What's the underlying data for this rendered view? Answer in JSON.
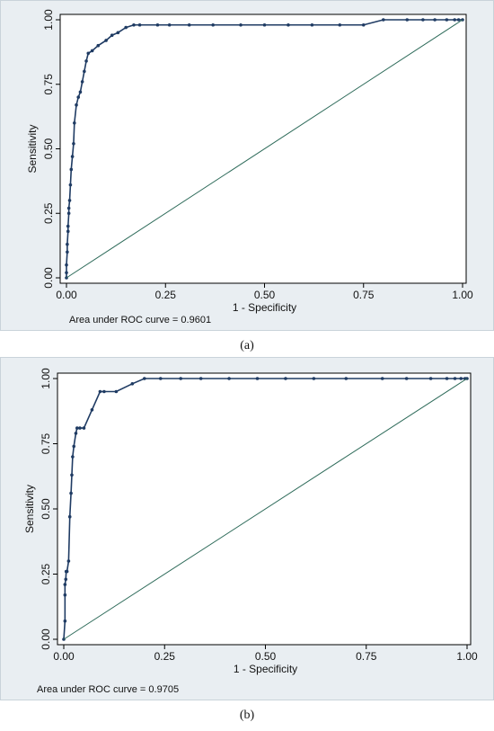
{
  "chart_data": [
    {
      "type": "line",
      "panel_label": "(a)",
      "xlabel": "1 - Specificity",
      "ylabel": "Sensitivity",
      "xlim": [
        0,
        1
      ],
      "ylim": [
        0,
        1
      ],
      "xticks": [
        "0.00",
        "0.25",
        "0.50",
        "0.75",
        "1.00"
      ],
      "yticks": [
        "0.00",
        "0.25",
        "0.50",
        "0.75",
        "1.00"
      ],
      "annotation": "Area under ROC curve = 0.9601",
      "grid": false,
      "series": [
        {
          "kind": "roc",
          "x": [
            0,
            0,
            0,
            0.002,
            0.002,
            0.004,
            0.004,
            0.006,
            0.006,
            0.008,
            0.01,
            0.012,
            0.015,
            0.018,
            0.02,
            0.025,
            0.03,
            0.035,
            0.04,
            0.045,
            0.05,
            0.055,
            0.065,
            0.08,
            0.1,
            0.115,
            0.13,
            0.15,
            0.17,
            0.185,
            0.23,
            0.26,
            0.31,
            0.37,
            0.44,
            0.5,
            0.56,
            0.62,
            0.69,
            0.75,
            0.8,
            0.86,
            0.9,
            0.93,
            0.96,
            0.98,
            0.99,
            1.0
          ],
          "y": [
            0,
            0.02,
            0.05,
            0.1,
            0.13,
            0.18,
            0.2,
            0.25,
            0.27,
            0.3,
            0.36,
            0.42,
            0.47,
            0.52,
            0.6,
            0.67,
            0.7,
            0.72,
            0.76,
            0.8,
            0.84,
            0.87,
            0.88,
            0.9,
            0.92,
            0.94,
            0.95,
            0.97,
            0.98,
            0.98,
            0.98,
            0.98,
            0.98,
            0.98,
            0.98,
            0.98,
            0.98,
            0.98,
            0.98,
            0.98,
            1.0,
            1.0,
            1.0,
            1.0,
            1.0,
            1.0,
            1.0,
            1.0
          ]
        },
        {
          "kind": "reference",
          "x": [
            0,
            1
          ],
          "y": [
            0,
            1
          ]
        }
      ]
    },
    {
      "type": "line",
      "panel_label": "(b)",
      "xlabel": "1 - Specificity",
      "ylabel": "Sensitivity",
      "xlim": [
        0,
        1
      ],
      "ylim": [
        0,
        1
      ],
      "xticks": [
        "0.00",
        "0.25",
        "0.50",
        "0.75",
        "1.00"
      ],
      "yticks": [
        "0.00",
        "0.25",
        "0.50",
        "0.75",
        "1.00"
      ],
      "annotation": "Area under ROC curve = 0.9705",
      "grid": false,
      "series": [
        {
          "kind": "roc",
          "x": [
            0,
            0.003,
            0.003,
            0.003,
            0.005,
            0.006,
            0.008,
            0.012,
            0.015,
            0.018,
            0.02,
            0.022,
            0.025,
            0.03,
            0.033,
            0.04,
            0.05,
            0.07,
            0.09,
            0.1,
            0.13,
            0.17,
            0.2,
            0.24,
            0.29,
            0.34,
            0.41,
            0.48,
            0.55,
            0.62,
            0.7,
            0.79,
            0.85,
            0.91,
            0.95,
            0.97,
            0.985,
            0.995,
            1.0
          ],
          "y": [
            0,
            0.07,
            0.17,
            0.21,
            0.23,
            0.26,
            0.26,
            0.3,
            0.47,
            0.56,
            0.63,
            0.7,
            0.74,
            0.79,
            0.81,
            0.81,
            0.81,
            0.88,
            0.95,
            0.95,
            0.95,
            0.98,
            1.0,
            1.0,
            1.0,
            1.0,
            1.0,
            1.0,
            1.0,
            1.0,
            1.0,
            1.0,
            1.0,
            1.0,
            1.0,
            1.0,
            1.0,
            1.0,
            1.0
          ]
        },
        {
          "kind": "reference",
          "x": [
            0,
            1
          ],
          "y": [
            0,
            1
          ]
        }
      ]
    }
  ],
  "colors": {
    "roc_line": "#1f3b63",
    "reference_line": "#2e6b5a",
    "panel_background": "#e9eef2",
    "plot_background": "#ffffff"
  }
}
